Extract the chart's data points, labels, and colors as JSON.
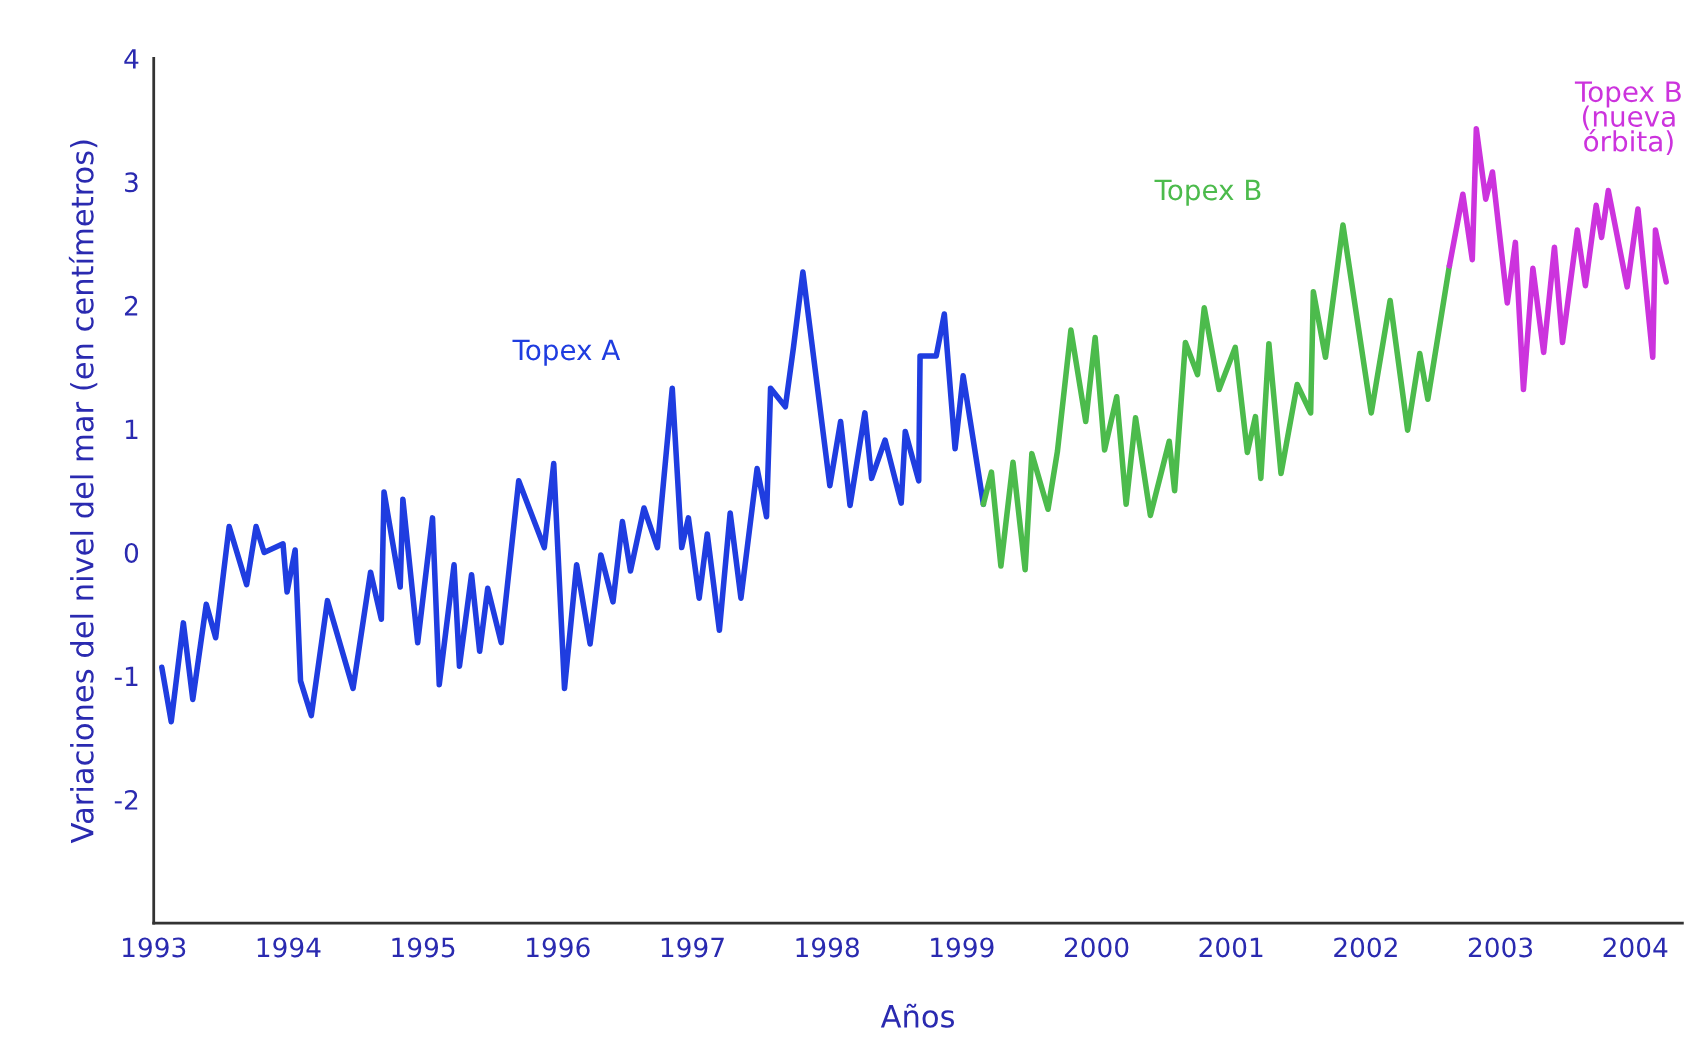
{
  "chart_data": {
    "type": "line",
    "xlabel": "Años",
    "ylabel": "Variaciones del nivel del mar (en centímetros)",
    "xlim": [
      1993,
      2004.35
    ],
    "ylim": [
      -3,
      4
    ],
    "xticks": [
      1993,
      1994,
      1995,
      1996,
      1997,
      1998,
      1999,
      2000,
      2001,
      2002,
      2003,
      2004
    ],
    "yticks": [
      -2,
      -1,
      0,
      1,
      2,
      3,
      4
    ],
    "grid": false,
    "legend": false,
    "marker": "none",
    "line_style": "solid",
    "series": [
      {
        "name": "Topex A",
        "color": "#1f3de0",
        "x": [
          1993.06,
          1993.13,
          1993.22,
          1993.29,
          1993.39,
          1993.46,
          1993.56,
          1993.69,
          1993.76,
          1993.82,
          1993.96,
          1993.99,
          1994.05,
          1994.09,
          1994.17,
          1994.29,
          1994.48,
          1994.61,
          1994.69,
          1994.71,
          1994.83,
          1994.85,
          1994.96,
          1995.07,
          1995.12,
          1995.23,
          1995.27,
          1995.36,
          1995.42,
          1995.48,
          1995.58,
          1995.71,
          1995.9,
          1995.97,
          1996.05,
          1996.14,
          1996.24,
          1996.32,
          1996.41,
          1996.48,
          1996.54,
          1996.64,
          1996.74,
          1996.85,
          1996.92,
          1996.97,
          1997.05,
          1997.11,
          1997.2,
          1997.28,
          1997.36,
          1997.48,
          1997.55,
          1997.58,
          1997.69,
          1997.75,
          1997.82,
          1998.02,
          1998.1,
          1998.17,
          1998.28,
          1998.33,
          1998.43,
          1998.55,
          1998.58,
          1998.68,
          1998.69,
          1998.81,
          1998.87,
          1998.95,
          1999.01,
          1999.16
        ],
        "values": [
          -0.93,
          -1.37,
          -0.57,
          -1.19,
          -0.42,
          -0.69,
          0.21,
          -0.26,
          0.21,
          0.0,
          0.07,
          -0.32,
          0.02,
          -1.04,
          -1.32,
          -0.39,
          -1.1,
          -0.16,
          -0.54,
          0.49,
          -0.28,
          0.43,
          -0.73,
          0.28,
          -1.07,
          -0.1,
          -0.92,
          -0.18,
          -0.8,
          -0.29,
          -0.73,
          0.58,
          0.04,
          0.72,
          -1.1,
          -0.1,
          -0.74,
          -0.02,
          -0.4,
          0.25,
          -0.15,
          0.36,
          0.04,
          1.33,
          0.04,
          0.28,
          -0.37,
          0.15,
          -0.63,
          0.32,
          -0.37,
          0.68,
          0.29,
          1.33,
          1.18,
          1.66,
          2.27,
          0.54,
          1.06,
          0.38,
          1.13,
          0.6,
          0.91,
          0.4,
          0.98,
          0.58,
          1.59,
          1.59,
          1.93,
          0.84,
          1.43,
          0.39
        ]
      },
      {
        "name": "Topex B",
        "color": "#4cbb4c",
        "x": [
          1999.16,
          1999.22,
          1999.29,
          1999.38,
          1999.47,
          1999.52,
          1999.64,
          1999.71,
          1999.81,
          1999.92,
          1999.99,
          2000.06,
          2000.15,
          2000.22,
          2000.29,
          2000.4,
          2000.54,
          2000.58,
          2000.66,
          2000.75,
          2000.8,
          2000.91,
          2001.03,
          2001.12,
          2001.18,
          2001.22,
          2001.28,
          2001.37,
          2001.49,
          2001.59,
          2001.61,
          2001.7,
          2001.83,
          2002.04,
          2002.18,
          2002.31,
          2002.4,
          2002.46,
          2002.62
        ],
        "values": [
          0.39,
          0.65,
          -0.11,
          0.73,
          -0.14,
          0.8,
          0.35,
          0.82,
          1.8,
          1.06,
          1.74,
          0.83,
          1.26,
          0.39,
          1.09,
          0.3,
          0.9,
          0.5,
          1.7,
          1.44,
          1.98,
          1.32,
          1.66,
          0.81,
          1.1,
          0.6,
          1.69,
          0.64,
          1.36,
          1.13,
          2.11,
          1.58,
          2.65,
          1.13,
          2.04,
          0.99,
          1.61,
          1.24,
          2.32
        ]
      },
      {
        "name": "Topex B\n(nueva\nórbita)",
        "color": "#cc33dd",
        "x": [
          2002.62,
          2002.72,
          2002.79,
          2002.82,
          2002.89,
          2002.94,
          2003.05,
          2003.11,
          2003.17,
          2003.24,
          2003.32,
          2003.4,
          2003.46,
          2003.57,
          2003.63,
          2003.71,
          2003.75,
          2003.8,
          2003.94,
          2004.02,
          2004.13,
          2004.15,
          2004.23
        ],
        "values": [
          2.32,
          2.9,
          2.37,
          3.43,
          2.86,
          3.08,
          2.02,
          2.51,
          1.32,
          2.3,
          1.62,
          2.47,
          1.7,
          2.61,
          2.16,
          2.81,
          2.55,
          2.93,
          2.15,
          2.78,
          1.58,
          2.61,
          2.19
        ]
      }
    ]
  }
}
